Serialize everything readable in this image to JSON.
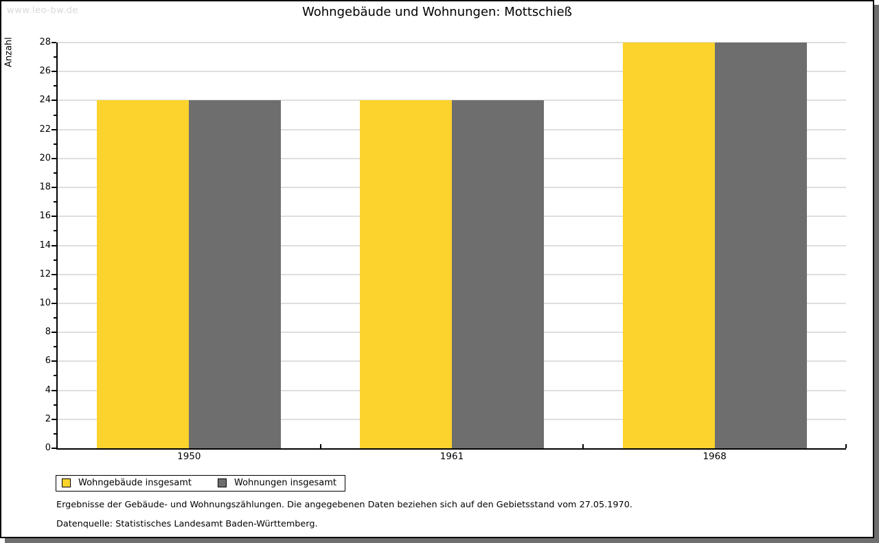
{
  "watermark": "www.leo-bw.de",
  "title": "Wohngebäude und Wohnungen: Mottschieß",
  "chart_data": {
    "type": "bar",
    "title": "Wohngebäude und Wohnungen: Mottschieß",
    "categories": [
      "1950",
      "1961",
      "1968"
    ],
    "series": [
      {
        "name": "Wohngebäude insgesamt",
        "color": "#fcd32d",
        "values": [
          24,
          24,
          28
        ]
      },
      {
        "name": "Wohnungen insgesamt",
        "color": "#6e6e6e",
        "values": [
          24,
          24,
          28
        ]
      }
    ],
    "xlabel": "",
    "ylabel": "Anzahl",
    "ylim": [
      0,
      28
    ],
    "ytick_step": 2,
    "ytick_minor_step": 1,
    "ytick_labels": [
      "0",
      "2",
      "4",
      "6",
      "8",
      "10",
      "12",
      "14",
      "16",
      "18",
      "20",
      "22",
      "24",
      "26",
      "28"
    ],
    "grid": true,
    "gridline_color": "#dedede",
    "legend_position": "bottom-left"
  },
  "footnotes": [
    "Ergebnisse der Gebäude- und Wohnungszählungen. Die angegebenen Daten beziehen sich auf den Gebietsstand vom 27.05.1970.",
    "Datenquelle: Statistisches Landesamt Baden-Württemberg."
  ]
}
